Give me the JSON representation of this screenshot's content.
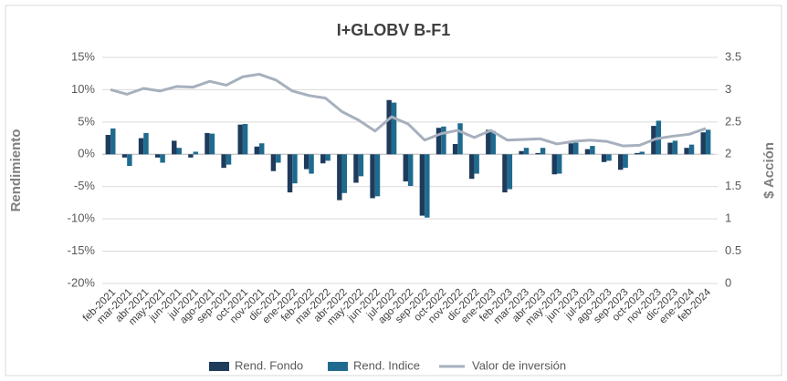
{
  "chart_data": {
    "type": "bar_line",
    "title": "I+GLOBV B-F1",
    "y_label": "Rendimiento",
    "y2_label": "$ Acción",
    "categories": [
      "feb-2021",
      "mar-2021",
      "abr-2021",
      "may-2021",
      "jun-2021",
      "jul-2021",
      "ago-2021",
      "sep-2021",
      "oct-2021",
      "nov-2021",
      "dic-2021",
      "ene-2022",
      "feb-2022",
      "mar-2022",
      "abr-2022",
      "may-2022",
      "jun-2022",
      "jul-2022",
      "ago-2022",
      "sep-2022",
      "oct-2022",
      "nov-2022",
      "dic-2022",
      "ene-2023",
      "feb-2023",
      "mar-2023",
      "abr-2023",
      "may-2023",
      "jun-2023",
      "jul-2023",
      "ago-2023",
      "sep-2023",
      "oct-2023",
      "nov-2023",
      "dic-2023",
      "ene-2024",
      "feb-2024"
    ],
    "series": [
      {
        "name": "Rend. Fondo",
        "type": "bar",
        "color": "#1f3b5c",
        "values": [
          3.0,
          -0.5,
          2.5,
          -0.5,
          2.1,
          -0.5,
          3.3,
          -2.1,
          4.6,
          1.2,
          -2.6,
          -5.9,
          -2.3,
          -1.4,
          -7.1,
          -4.4,
          -6.8,
          8.4,
          -4.2,
          -9.5,
          4.1,
          1.6,
          -3.8,
          3.8,
          -5.9,
          0.5,
          0.2,
          -3.1,
          1.7,
          0.8,
          -1.2,
          -2.4,
          0.2,
          4.4,
          1.8,
          1.0,
          3.4
        ]
      },
      {
        "name": "Rend. Indice",
        "type": "bar",
        "color": "#1f6b8f",
        "values": [
          4.0,
          -1.8,
          3.3,
          -1.3,
          1.0,
          0.4,
          3.2,
          -1.6,
          4.7,
          1.7,
          -1.3,
          -4.5,
          -3.0,
          -1.0,
          -6.0,
          -3.4,
          -6.5,
          8.0,
          -4.9,
          -9.8,
          4.3,
          4.8,
          -3.0,
          3.6,
          -5.4,
          1.0,
          1.0,
          -3.0,
          1.8,
          1.3,
          -1.0,
          -2.1,
          0.4,
          5.2,
          2.1,
          1.5,
          3.8
        ]
      },
      {
        "name": "Valor de inversión",
        "type": "line",
        "axis": "y2",
        "color": "#a7b0bd",
        "values": [
          3.0,
          2.93,
          3.02,
          2.98,
          3.05,
          3.04,
          3.13,
          3.07,
          3.2,
          3.24,
          3.15,
          2.98,
          2.91,
          2.87,
          2.66,
          2.53,
          2.36,
          2.58,
          2.47,
          2.22,
          2.32,
          2.37,
          2.26,
          2.37,
          2.22,
          2.23,
          2.24,
          2.16,
          2.2,
          2.22,
          2.2,
          2.13,
          2.14,
          2.24,
          2.28,
          2.31,
          2.4
        ]
      }
    ],
    "ylim": [
      -20,
      15
    ],
    "yticks": [
      {
        "value": -20,
        "label": "-20%"
      },
      {
        "value": -15,
        "label": "-15%"
      },
      {
        "value": -10,
        "label": "-10%"
      },
      {
        "value": -5,
        "label": "-5%"
      },
      {
        "value": 0,
        "label": "0%"
      },
      {
        "value": 5,
        "label": "5%"
      },
      {
        "value": 10,
        "label": "10%"
      },
      {
        "value": 15,
        "label": "15%"
      }
    ],
    "y2lim": [
      0,
      3.5
    ],
    "y2ticks": [
      0,
      0.5,
      1,
      1.5,
      2,
      2.5,
      3,
      3.5
    ],
    "grid": true,
    "legend": "bottom"
  }
}
